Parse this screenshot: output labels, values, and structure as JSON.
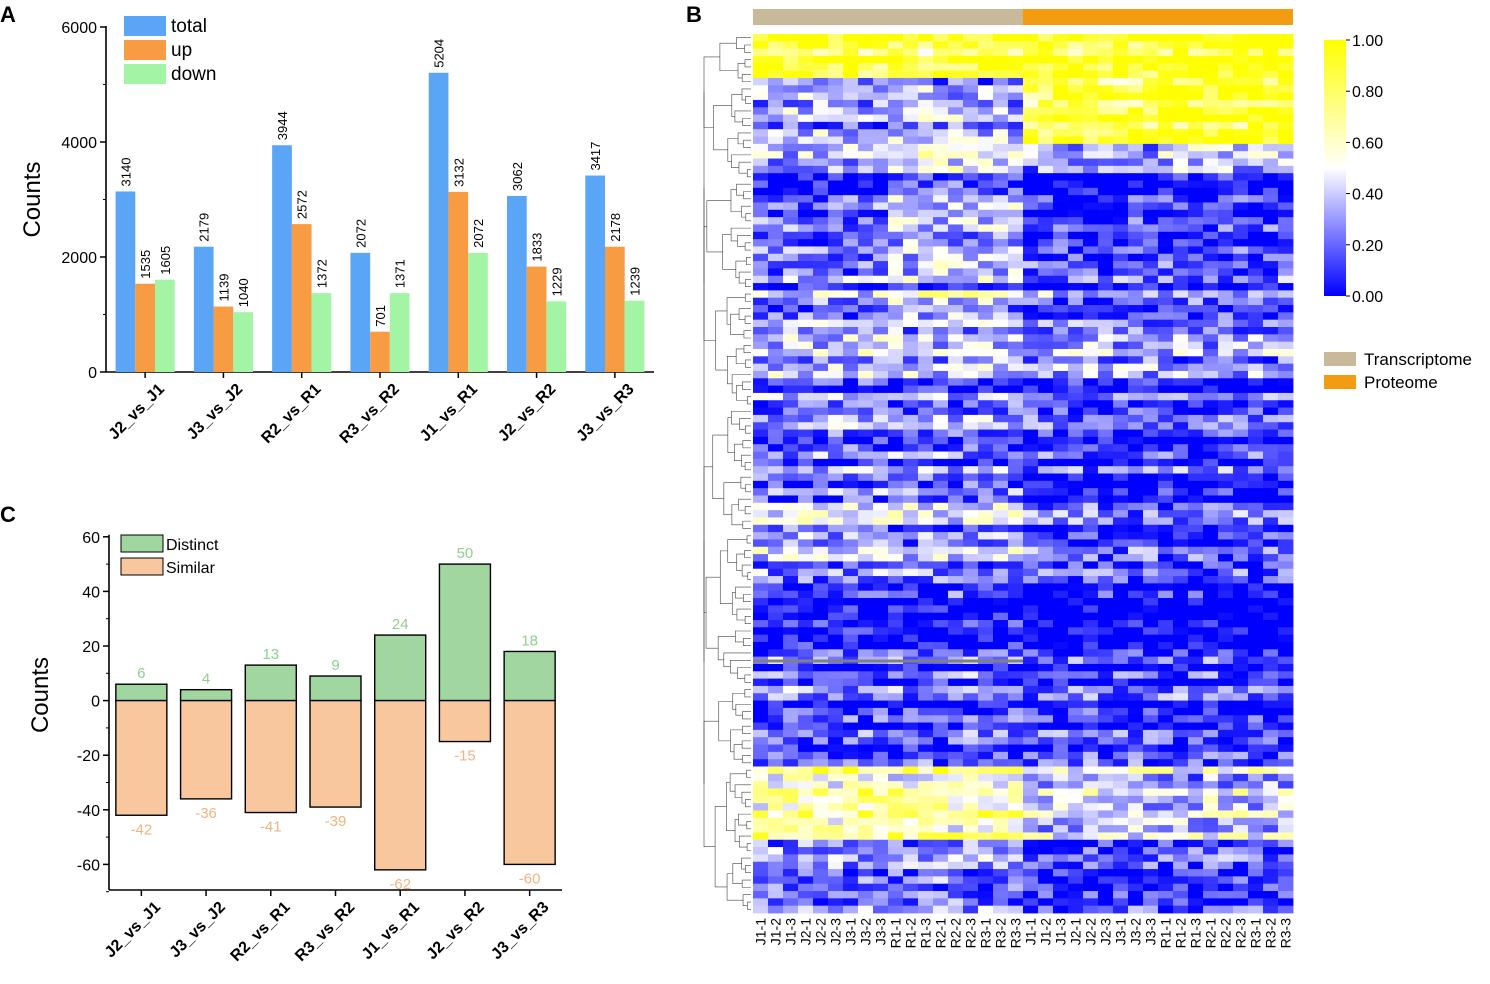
{
  "chart_data": [
    {
      "panel": "A",
      "type": "bar",
      "ylabel": "Counts",
      "ylim": [
        0,
        6000
      ],
      "yticks": [
        0,
        2000,
        4000,
        6000
      ],
      "categories": [
        "J2_vs_J1",
        "J3_vs_J2",
        "R2_vs_R1",
        "R3_vs_R2",
        "J1_vs_R1",
        "J2_vs_R2",
        "J3_vs_R3"
      ],
      "series": [
        {
          "name": "total",
          "color": "#5aa5f5",
          "values": [
            3140,
            2179,
            3944,
            2072,
            5204,
            3062,
            3417
          ]
        },
        {
          "name": "up",
          "color": "#f89c43",
          "values": [
            1535,
            1139,
            2572,
            701,
            3132,
            1833,
            2178
          ]
        },
        {
          "name": "down",
          "color": "#a4f4a6",
          "values": [
            1605,
            1040,
            1372,
            1371,
            2072,
            1229,
            1239
          ]
        }
      ]
    },
    {
      "panel": "C",
      "type": "bar",
      "ylabel": "Counts",
      "ylim": [
        -70,
        60
      ],
      "yticks": [
        -60,
        -40,
        -20,
        0,
        20,
        40,
        60
      ],
      "categories": [
        "J2_vs_J1",
        "J3_vs_J2",
        "R2_vs_R1",
        "R3_vs_R2",
        "J1_vs_R1",
        "J2_vs_R2",
        "J3_vs_R3"
      ],
      "series": [
        {
          "name": "Distinct",
          "color": "#a1d6a1",
          "label_color": "#8fcf8f",
          "values": [
            6,
            4,
            13,
            9,
            24,
            50,
            18
          ]
        },
        {
          "name": "Similar",
          "color": "#f8c79e",
          "label_color": "#f0b47e",
          "values": [
            -42,
            -36,
            -41,
            -39,
            -62,
            -15,
            -60
          ]
        }
      ]
    },
    {
      "panel": "B",
      "type": "heatmap",
      "columns": [
        "J1-1",
        "J1-2",
        "J1-3",
        "J2-1",
        "J2-2",
        "J2-3",
        "J3-1",
        "J3-2",
        "J3-3",
        "R1-1",
        "R1-2",
        "R1-3",
        "R2-1",
        "R2-2",
        "R2-3",
        "R3-1",
        "R3-2",
        "R3-3",
        "J1-1",
        "J1-2",
        "J1-3",
        "J2-1",
        "J2-2",
        "J2-3",
        "J3-1",
        "J3-2",
        "J3-3",
        "R1-1",
        "R1-2",
        "R1-3",
        "R2-1",
        "R2-2",
        "R2-3",
        "R3-1",
        "R3-2",
        "R3-3"
      ],
      "column_groups": [
        {
          "name": "Transcriptome",
          "color": "#c8b99a",
          "count": 18
        },
        {
          "name": "Proteome",
          "color": "#f39c12",
          "count": 18
        }
      ],
      "colorbar": {
        "min": 0,
        "max": 1,
        "tick_labels": [
          "0.00",
          "0.20",
          "0.40",
          "0.60",
          "0.80",
          "1.00"
        ],
        "colors": [
          "#0000ff",
          "#ffffff",
          "#ffff00"
        ]
      },
      "legend": [
        "Transcriptome",
        "Proteome"
      ]
    }
  ],
  "panel_letters": {
    "a": "A",
    "b": "B",
    "c": "C"
  }
}
